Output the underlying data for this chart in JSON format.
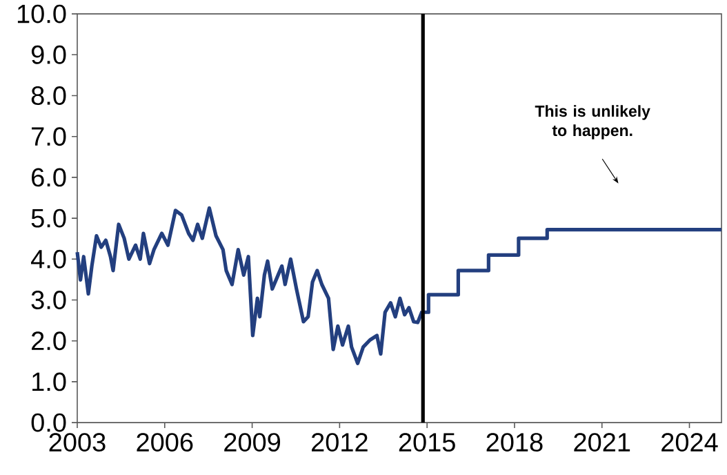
{
  "chart_data": {
    "type": "line",
    "series": [
      {
        "color": "#233f7f",
        "x": [
          2003.0,
          2003.11,
          2003.22,
          2003.38,
          2003.5,
          2003.66,
          2003.82,
          2003.98,
          2004.14,
          2004.23,
          2004.42,
          2004.61,
          2004.77,
          2005.0,
          2005.16,
          2005.27,
          2005.48,
          2005.63,
          2005.9,
          2006.11,
          2006.37,
          2006.58,
          2006.82,
          2006.97,
          2007.13,
          2007.29,
          2007.53,
          2007.76,
          2008.0,
          2008.11,
          2008.31,
          2008.52,
          2008.71,
          2008.87,
          2009.02,
          2009.18,
          2009.26,
          2009.42,
          2009.53,
          2009.69,
          2009.89,
          2010.02,
          2010.13,
          2010.32,
          2010.52,
          2010.76,
          2010.92,
          2011.07,
          2011.23,
          2011.39,
          2011.62,
          2011.78,
          2011.94,
          2012.1,
          2012.3,
          2012.41,
          2012.62,
          2012.81,
          2013.04,
          2013.28,
          2013.41,
          2013.56,
          2013.75,
          2013.91,
          2014.07,
          2014.23,
          2014.38,
          2014.54,
          2014.68,
          2014.83
        ],
        "values": [
          4.17,
          3.49,
          4.06,
          3.15,
          3.83,
          4.57,
          4.29,
          4.46,
          4.06,
          3.72,
          4.85,
          4.51,
          4.0,
          4.34,
          4.0,
          4.63,
          3.89,
          4.23,
          4.63,
          4.34,
          5.19,
          5.08,
          4.63,
          4.46,
          4.85,
          4.51,
          5.25,
          4.57,
          4.23,
          3.72,
          3.38,
          4.23,
          3.61,
          4.06,
          2.13,
          3.04,
          2.59,
          3.61,
          3.95,
          3.27,
          3.61,
          3.83,
          3.38,
          4.0,
          3.27,
          2.47,
          2.59,
          3.44,
          3.72,
          3.38,
          3.04,
          1.79,
          2.36,
          1.9,
          2.36,
          1.85,
          1.45,
          1.85,
          2.02,
          2.13,
          1.68,
          2.7,
          2.93,
          2.59,
          3.04,
          2.64,
          2.81,
          2.47,
          2.45,
          2.72
        ]
      },
      {
        "type": "step",
        "color": "#233f7f",
        "x": [
          2014.86,
          2015.05,
          2016.07,
          2017.11,
          2018.14,
          2019.12,
          2025.1
        ],
        "values": [
          2.7,
          3.13,
          3.72,
          4.1,
          4.51,
          4.72,
          4.72
        ]
      }
    ],
    "xlim": [
      2003,
      2025.1
    ],
    "xticks": [
      2003,
      2006,
      2009,
      2012,
      2015,
      2018,
      2021,
      2024
    ],
    "ylim": [
      0,
      10
    ],
    "yticks": [
      {
        "value": 0,
        "label": "0.0"
      },
      {
        "value": 1,
        "label": "1.0"
      },
      {
        "value": 2,
        "label": "2.0"
      },
      {
        "value": 3,
        "label": "3.0"
      },
      {
        "value": 4,
        "label": "4.0"
      },
      {
        "value": 5,
        "label": "5.0"
      },
      {
        "value": 6,
        "label": "6.0"
      },
      {
        "value": 7,
        "label": "7.0"
      },
      {
        "value": 8,
        "label": "8.0"
      },
      {
        "value": 9,
        "label": "9.0"
      },
      {
        "value": 10,
        "label": "10.0"
      }
    ],
    "ref_lines": [
      {
        "axis": "x",
        "value": 2014.86,
        "color": "#000000"
      }
    ],
    "annotations": [
      "This is unlikely to happen."
    ],
    "grid": false,
    "marker": "none",
    "line_style": "solid"
  }
}
